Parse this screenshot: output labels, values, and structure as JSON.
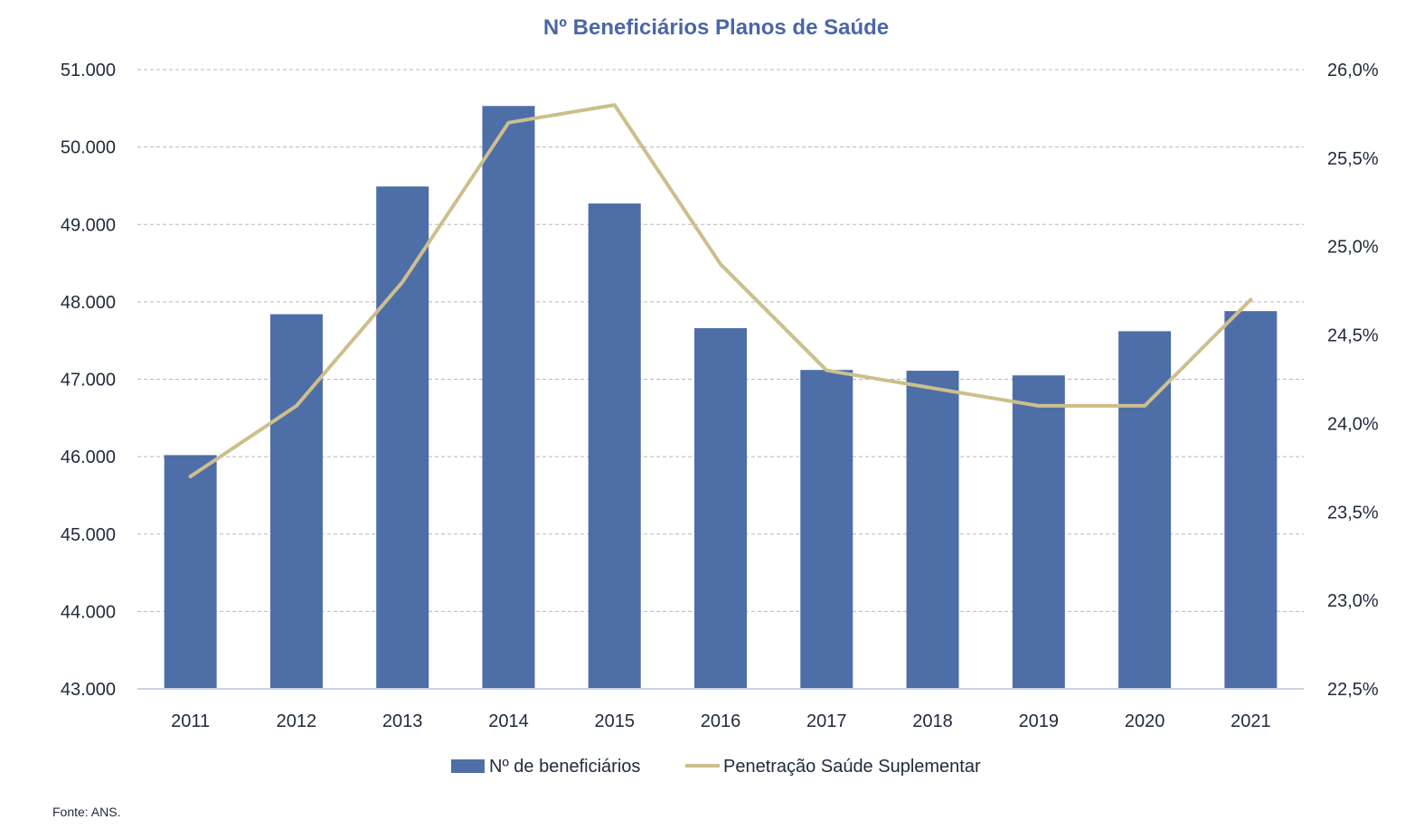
{
  "chart_data": {
    "type": "bar",
    "title": "Nº Beneficiários Planos de Saúde",
    "categories": [
      "2011",
      "2012",
      "2013",
      "2014",
      "2015",
      "2016",
      "2017",
      "2018",
      "2019",
      "2020",
      "2021"
    ],
    "series": [
      {
        "name": "Nº de beneficiários",
        "type": "bar",
        "axis": "left",
        "color": "#4e6ea8",
        "values": [
          46020,
          47840,
          49490,
          50530,
          49270,
          47660,
          47120,
          47110,
          47050,
          47620,
          47880
        ]
      },
      {
        "name": "Penetração Saúde Suplementar",
        "type": "line",
        "axis": "right",
        "color": "#cdbf8c",
        "values": [
          23.7,
          24.1,
          24.8,
          25.7,
          25.8,
          24.9,
          24.3,
          24.2,
          24.1,
          24.1,
          24.7
        ]
      }
    ],
    "y_left": {
      "ylim": [
        43000,
        51000
      ],
      "ticks": [
        43000,
        44000,
        45000,
        46000,
        47000,
        48000,
        49000,
        50000,
        51000
      ],
      "tick_labels": [
        "43.000",
        "44.000",
        "45.000",
        "46.000",
        "47.000",
        "48.000",
        "49.000",
        "50.000",
        "51.000"
      ]
    },
    "y_right": {
      "ylim": [
        22.5,
        26.0
      ],
      "ticks": [
        22.5,
        23.0,
        23.5,
        24.0,
        24.5,
        25.0,
        25.5,
        26.0
      ],
      "tick_labels": [
        "22,5%",
        "23,0%",
        "23,5%",
        "24,0%",
        "24,5%",
        "25,0%",
        "25,5%",
        "26,0%"
      ]
    },
    "grid": "horizontal-dashed",
    "legend": "bottom-center"
  },
  "source": "Fonte: ANS.",
  "colors": {
    "title": "#4a67a6",
    "text": "#1f2a3a",
    "grid": "#b8b8b8",
    "axis": "#c9d3e3"
  }
}
